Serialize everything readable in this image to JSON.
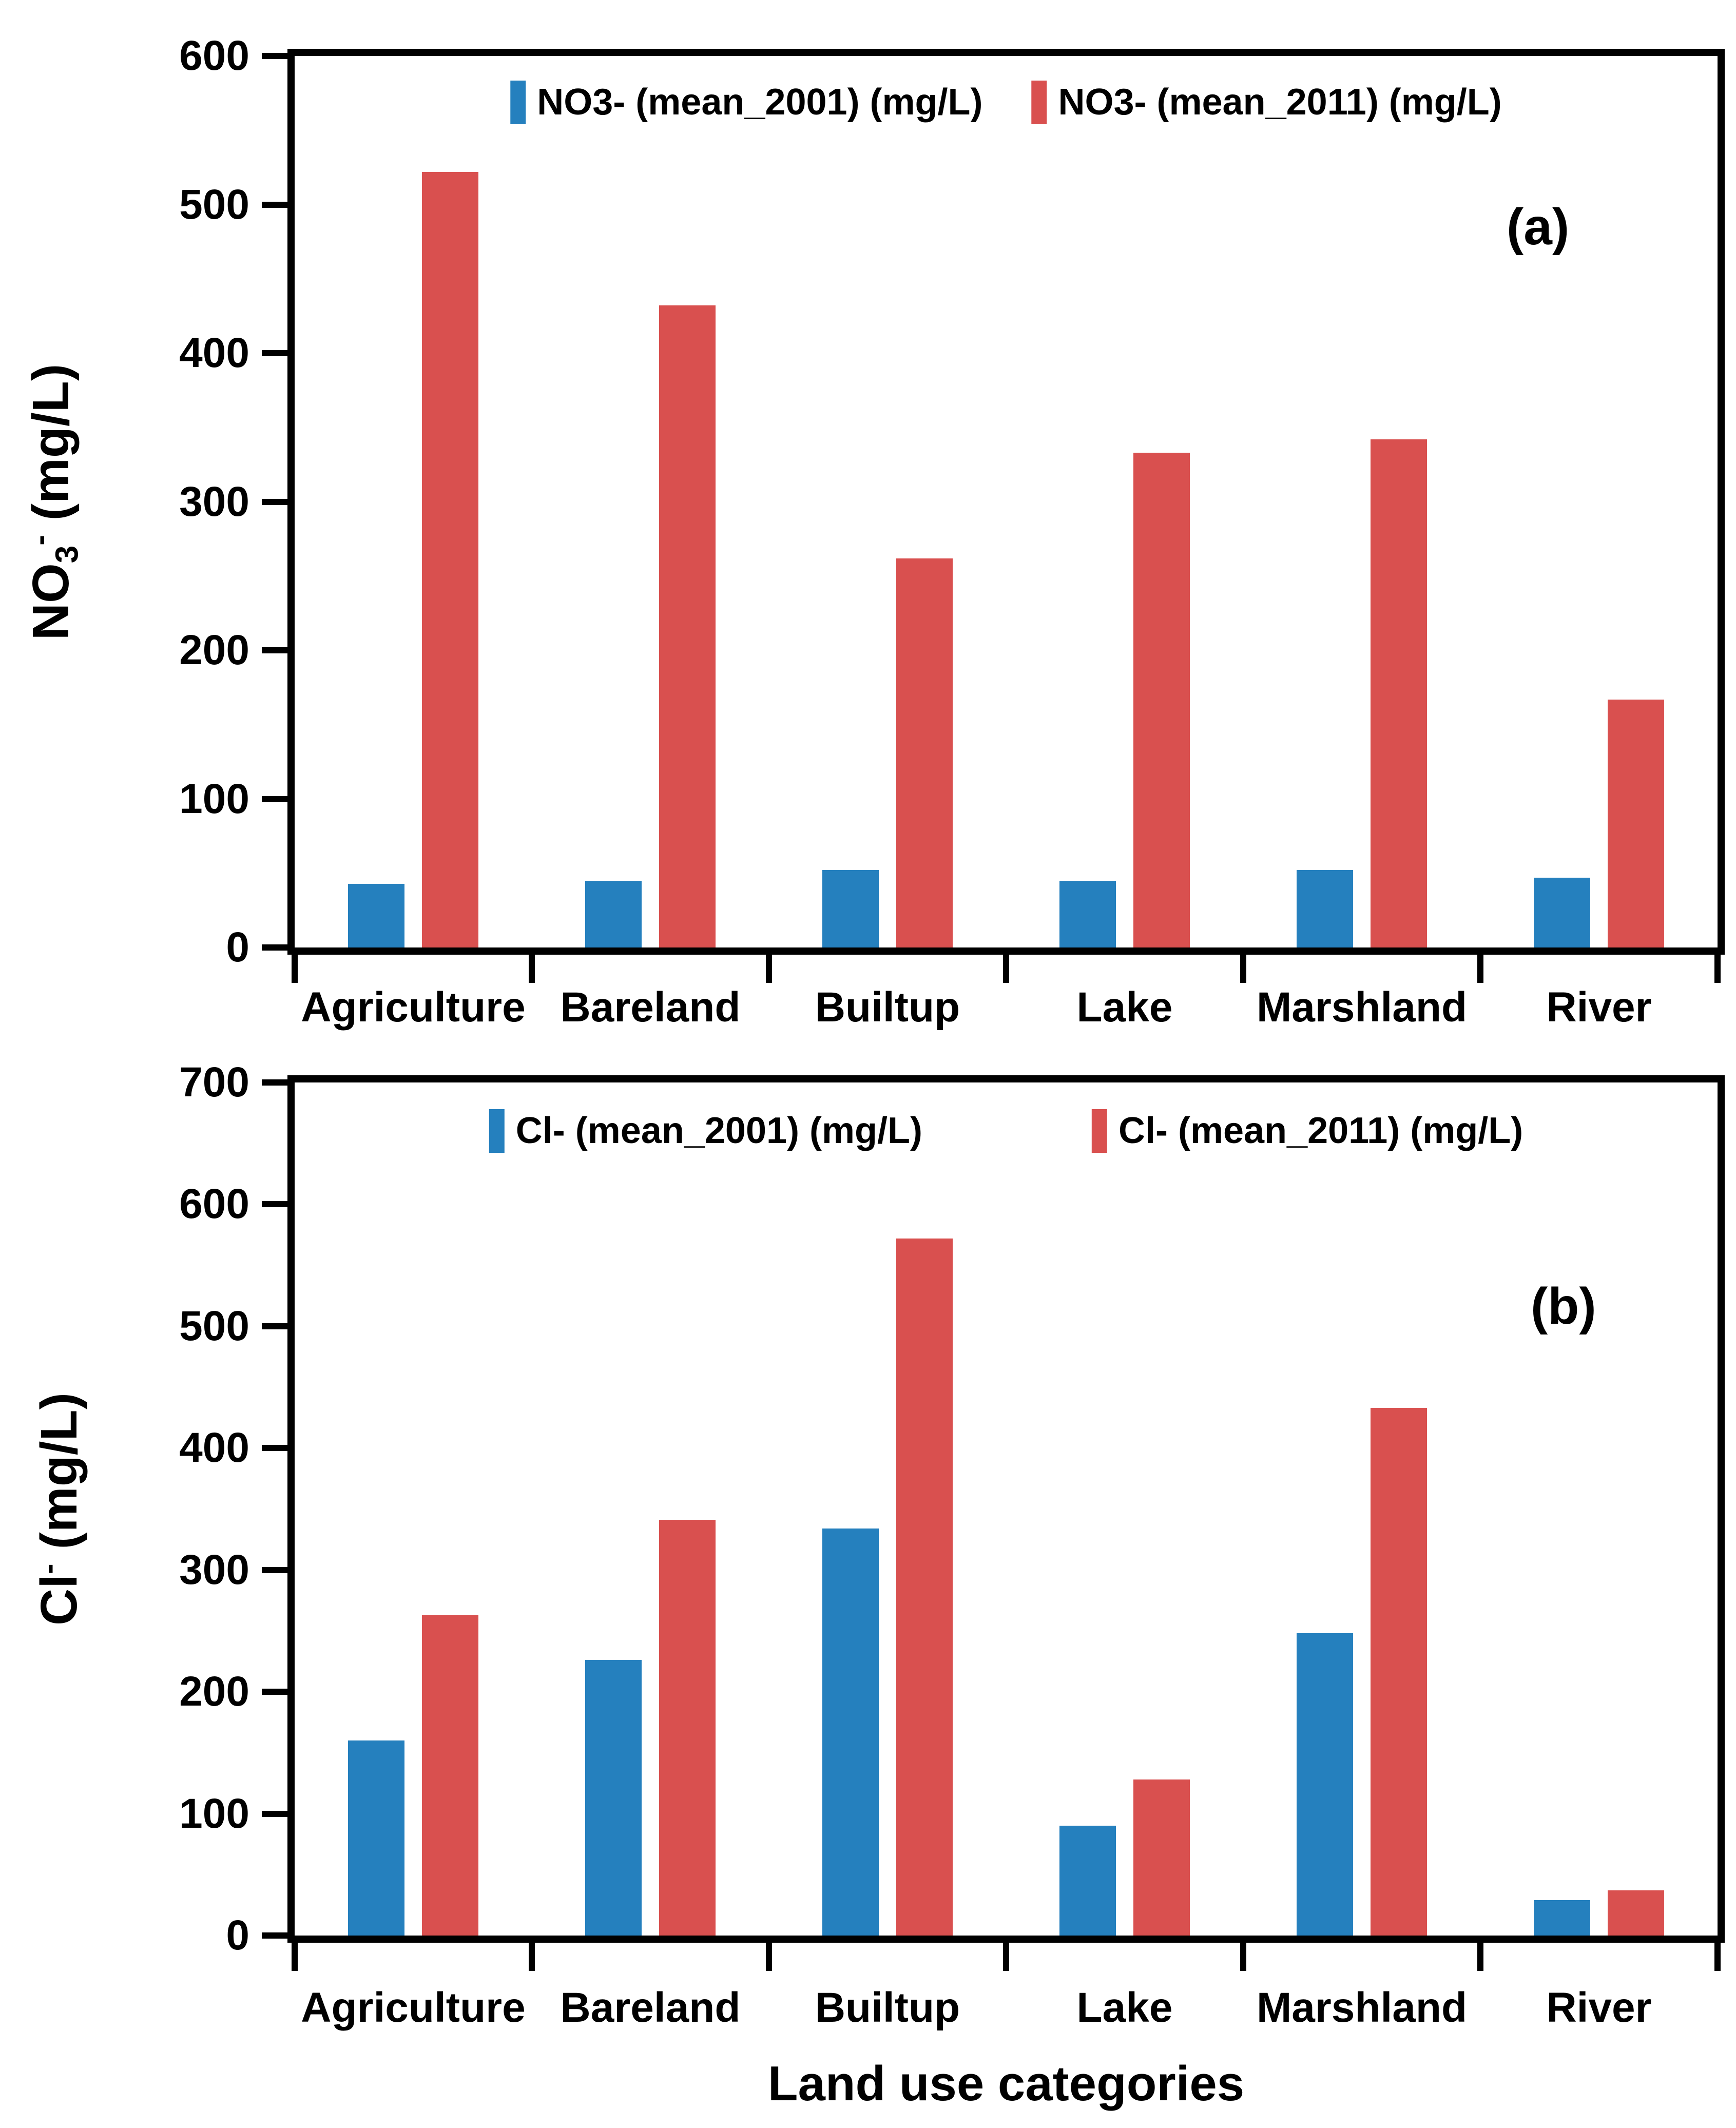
{
  "page": {
    "background": "#ffffff"
  },
  "colors": {
    "series_2001": "#2580BE",
    "series_2011": "#D9504F",
    "axis": "#000000",
    "text": "#000000"
  },
  "chart_data": [
    {
      "id": "a",
      "type": "bar",
      "panel_label": "(a)",
      "ylabel": {
        "base": "NO",
        "sub": "3",
        "sup": "-",
        "rest": " (mg/L)"
      },
      "xlabel": "",
      "categories": [
        "Agriculture",
        "Bareland",
        "Builtup",
        "Lake",
        "Marshland",
        "River"
      ],
      "series": [
        {
          "name": "NO3- (mean_2001) (mg/L)",
          "color_key": "series_2001",
          "values": [
            43,
            45,
            52,
            45,
            52,
            47
          ]
        },
        {
          "name": "NO3- (mean_2011) (mg/L)",
          "color_key": "series_2011",
          "values": [
            522,
            432,
            262,
            333,
            342,
            167
          ]
        }
      ],
      "ylim": [
        0,
        600
      ],
      "yticks": [
        0,
        100,
        200,
        300,
        400,
        500,
        600
      ],
      "grid": false,
      "legend_position": "top-center-inside"
    },
    {
      "id": "b",
      "type": "bar",
      "panel_label": "(b)",
      "ylabel": {
        "base": "Cl",
        "sub": "",
        "sup": "-",
        "rest": " (mg/L)"
      },
      "xlabel": "Land use categories",
      "categories": [
        "Agriculture",
        "Bareland",
        "Builtup",
        "Lake",
        "Marshland",
        "River"
      ],
      "series": [
        {
          "name": "Cl- (mean_2001) (mg/L)",
          "color_key": "series_2001",
          "values": [
            160,
            226,
            334,
            90,
            248,
            29
          ]
        },
        {
          "name": "Cl- (mean_2011) (mg/L)",
          "color_key": "series_2011",
          "values": [
            263,
            341,
            572,
            128,
            433,
            37
          ]
        }
      ],
      "ylim": [
        0,
        700
      ],
      "yticks": [
        0,
        100,
        200,
        300,
        400,
        500,
        600,
        700
      ],
      "grid": false,
      "legend_position": "top-center-inside"
    }
  ]
}
